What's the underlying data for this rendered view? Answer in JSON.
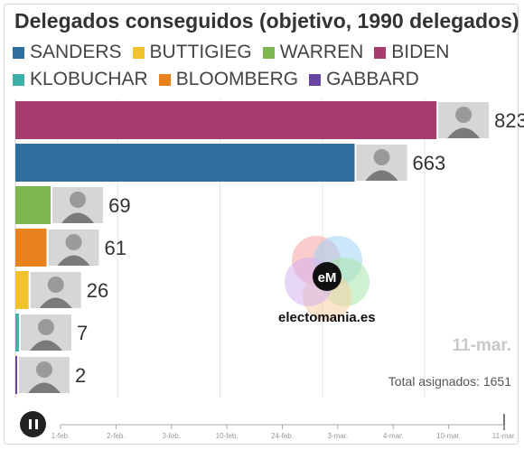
{
  "title": "Delegados conseguidos (objetivo, 1990 delegados)",
  "legend_rows": [
    [
      {
        "label": "SANDERS",
        "color": "#2e6f9e"
      },
      {
        "label": "BUTTIGIEG",
        "color": "#f2c12e"
      },
      {
        "label": "WARREN",
        "color": "#7cb84f"
      },
      {
        "label": "BIDEN",
        "color": "#a63d6e"
      }
    ],
    [
      {
        "label": "KLOBUCHAR",
        "color": "#3fb0a8"
      },
      {
        "label": "BLOOMBERG",
        "color": "#e8821e"
      },
      {
        "label": "GABBARD",
        "color": "#6a45a0"
      }
    ]
  ],
  "chart_data": {
    "type": "bar",
    "orientation": "horizontal",
    "title": "Delegados conseguidos (objetivo, 1990 delegados)",
    "categories": [
      "BIDEN",
      "SANDERS",
      "WARREN",
      "BLOOMBERG",
      "BUTTIGIEG",
      "KLOBUCHAR",
      "GABBARD"
    ],
    "values": [
      823,
      663,
      69,
      61,
      26,
      7,
      2
    ],
    "colors": [
      "#a63d6e",
      "#2e6f9e",
      "#7cb84f",
      "#e8821e",
      "#f2c12e",
      "#3fb0a8",
      "#6a45a0"
    ],
    "xlim": [
      0,
      1100
    ],
    "gridlines": true,
    "legend": "top"
  },
  "timeline": {
    "ticks": [
      "1-feb.",
      "2-feb.",
      "3-feb.",
      "10-feb.",
      "24-feb.",
      "3-mar.",
      "4-mar.",
      "10-mar.",
      "11-mar."
    ],
    "current": "11-mar."
  },
  "watermark": "electomania.es",
  "logo_text": "eM",
  "total_label": "Total asignados: 1651",
  "controls": {
    "pause_icon": "pause-icon"
  }
}
